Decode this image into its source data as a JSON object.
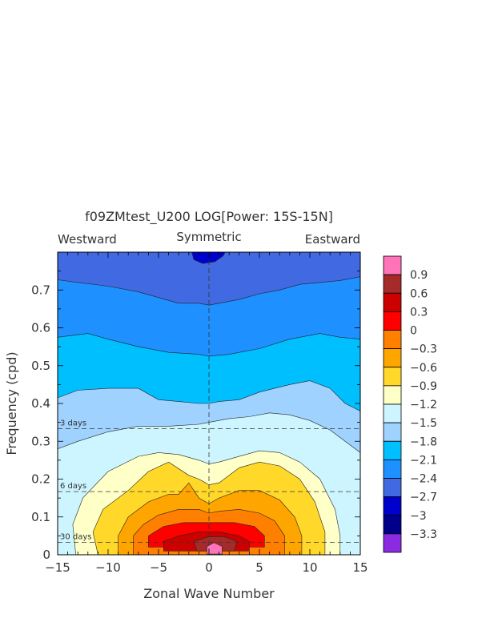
{
  "chart_data": {
    "type": "heatmap",
    "title": "f09ZMtest_U200 LOG[Power: 15S-15N]",
    "subtitle_center": "Symmetric",
    "subtitle_left": "Westward",
    "subtitle_right": "Eastward",
    "xlabel": "Zonal Wave Number",
    "ylabel": "Frequency (cpd)",
    "xlim": [
      -15,
      15
    ],
    "ylim": [
      0,
      0.8
    ],
    "xticks": [
      -15,
      -10,
      -5,
      0,
      5,
      10,
      15
    ],
    "yticks": [
      0,
      0.1,
      0.2,
      0.3,
      0.4,
      0.5,
      0.6,
      0.7
    ],
    "period_lines": [
      {
        "label": "3 days",
        "frequency": 0.333
      },
      {
        "label": "6 days",
        "frequency": 0.167
      },
      {
        "label": "30 days",
        "frequency": 0.033
      }
    ],
    "colorbar": {
      "levels": [
        "0.9",
        "0.6",
        "0.3",
        "0",
        "-0.3",
        "-0.6",
        "-0.9",
        "-1.2",
        "-1.5",
        "-1.8",
        "-2.1",
        "-2.4",
        "-2.7",
        "-3",
        "-3.3"
      ],
      "colors": [
        "#ff73b9",
        "#a52a2a",
        "#cd0000",
        "#ff0000",
        "#ff7f00",
        "#ffa500",
        "#ffd82a",
        "#ffffc8",
        "#cdf5ff",
        "#a0d2ff",
        "#00bfff",
        "#1e90ff",
        "#4169e1",
        "#0000cd",
        "#00008b",
        "#8a2be2"
      ]
    },
    "contour_fields": [
      {
        "level": -2.7,
        "color": "#4169e1",
        "shape": "band",
        "lower": [
          [
            -15,
            0.8
          ],
          [
            15,
            0.8
          ]
        ]
      },
      {
        "level": -2.4,
        "color": "#1e90ff",
        "shape": "band",
        "lower": [
          [
            -15,
            0.727
          ],
          [
            -13,
            0.72
          ],
          [
            -10,
            0.71
          ],
          [
            -7,
            0.695
          ],
          [
            -5,
            0.68
          ],
          [
            -3,
            0.665
          ],
          [
            -1,
            0.665
          ],
          [
            0,
            0.66
          ],
          [
            1,
            0.665
          ],
          [
            3,
            0.675
          ],
          [
            5,
            0.69
          ],
          [
            7,
            0.7
          ],
          [
            9,
            0.715
          ],
          [
            11,
            0.72
          ],
          [
            13,
            0.725
          ],
          [
            15,
            0.735
          ]
        ]
      },
      {
        "level": -2.1,
        "color": "#00bfff",
        "shape": "band",
        "lower": [
          [
            -15,
            0.575
          ],
          [
            -12,
            0.585
          ],
          [
            -10,
            0.57
          ],
          [
            -7,
            0.55
          ],
          [
            -4,
            0.535
          ],
          [
            -1,
            0.53
          ],
          [
            0,
            0.525
          ],
          [
            2,
            0.53
          ],
          [
            5,
            0.545
          ],
          [
            8,
            0.57
          ],
          [
            11,
            0.585
          ],
          [
            13,
            0.575
          ],
          [
            15,
            0.57
          ]
        ]
      },
      {
        "level": -1.8,
        "color": "#a0d2ff",
        "shape": "band",
        "lower": [
          [
            -15,
            0.415
          ],
          [
            -13,
            0.435
          ],
          [
            -10,
            0.44
          ],
          [
            -7,
            0.44
          ],
          [
            -5,
            0.41
          ],
          [
            -3,
            0.405
          ],
          [
            -1,
            0.4
          ],
          [
            0,
            0.4
          ],
          [
            1,
            0.405
          ],
          [
            3,
            0.41
          ],
          [
            5,
            0.43
          ],
          [
            8,
            0.45
          ],
          [
            10,
            0.46
          ],
          [
            12,
            0.44
          ],
          [
            13.5,
            0.4
          ],
          [
            15,
            0.38
          ]
        ]
      },
      {
        "level": -1.5,
        "color": "#cdf5ff",
        "shape": "band",
        "lower": [
          [
            -15,
            0.28
          ],
          [
            -13,
            0.3
          ],
          [
            -10,
            0.325
          ],
          [
            -7,
            0.34
          ],
          [
            -4,
            0.34
          ],
          [
            -1,
            0.345
          ],
          [
            0,
            0.35
          ],
          [
            2,
            0.36
          ],
          [
            4,
            0.365
          ],
          [
            6,
            0.375
          ],
          [
            8,
            0.37
          ],
          [
            10,
            0.355
          ],
          [
            12,
            0.33
          ],
          [
            14,
            0.29
          ],
          [
            15,
            0.27
          ]
        ]
      },
      {
        "level": -1.2,
        "color": "#ffffc8",
        "shape": "blob",
        "points": [
          [
            -13.2,
            0
          ],
          [
            -13.5,
            0.08
          ],
          [
            -12.5,
            0.15
          ],
          [
            -10,
            0.22
          ],
          [
            -7,
            0.26
          ],
          [
            -5,
            0.27
          ],
          [
            -3,
            0.265
          ],
          [
            -1,
            0.25
          ],
          [
            0,
            0.24
          ],
          [
            1,
            0.245
          ],
          [
            3,
            0.26
          ],
          [
            5,
            0.275
          ],
          [
            7,
            0.27
          ],
          [
            9,
            0.245
          ],
          [
            11,
            0.2
          ],
          [
            12.5,
            0.12
          ],
          [
            13,
            0.05
          ],
          [
            13,
            0
          ]
        ]
      },
      {
        "level": -0.9,
        "color": "#ffd82a",
        "shape": "blob",
        "points": [
          [
            -11,
            0
          ],
          [
            -11.5,
            0.06
          ],
          [
            -10.5,
            0.12
          ],
          [
            -8,
            0.17
          ],
          [
            -6,
            0.22
          ],
          [
            -4,
            0.245
          ],
          [
            -2,
            0.21
          ],
          [
            -1,
            0.2
          ],
          [
            0,
            0.185
          ],
          [
            1,
            0.19
          ],
          [
            3,
            0.23
          ],
          [
            5,
            0.245
          ],
          [
            7,
            0.235
          ],
          [
            9,
            0.2
          ],
          [
            10.5,
            0.14
          ],
          [
            11.5,
            0.06
          ],
          [
            11.5,
            0
          ]
        ]
      },
      {
        "level": -0.6,
        "color": "#ffa500",
        "shape": "blob",
        "points": [
          [
            -9,
            0
          ],
          [
            -9,
            0.05
          ],
          [
            -8,
            0.1
          ],
          [
            -6,
            0.14
          ],
          [
            -4,
            0.16
          ],
          [
            -3,
            0.16
          ],
          [
            -2,
            0.19
          ],
          [
            -1,
            0.15
          ],
          [
            0,
            0.135
          ],
          [
            1,
            0.15
          ],
          [
            3,
            0.17
          ],
          [
            5,
            0.17
          ],
          [
            7,
            0.145
          ],
          [
            8.5,
            0.1
          ],
          [
            9.2,
            0.05
          ],
          [
            9.2,
            0
          ]
        ]
      },
      {
        "level": -0.3,
        "color": "#ff7f00",
        "shape": "blob",
        "points": [
          [
            -7.5,
            0
          ],
          [
            -7.5,
            0.05
          ],
          [
            -6.5,
            0.08
          ],
          [
            -5,
            0.105
          ],
          [
            -3,
            0.12
          ],
          [
            -1,
            0.12
          ],
          [
            0,
            0.11
          ],
          [
            1,
            0.115
          ],
          [
            3,
            0.12
          ],
          [
            5,
            0.11
          ],
          [
            6.5,
            0.09
          ],
          [
            7.5,
            0.05
          ],
          [
            7.5,
            0
          ]
        ]
      },
      {
        "level": 0,
        "color": "#ff0000",
        "shape": "blob",
        "points": [
          [
            -6,
            0.02
          ],
          [
            -6,
            0.05
          ],
          [
            -4.5,
            0.075
          ],
          [
            -2.5,
            0.085
          ],
          [
            0,
            0.085
          ],
          [
            2.5,
            0.085
          ],
          [
            4.5,
            0.075
          ],
          [
            5.5,
            0.05
          ],
          [
            5.5,
            0.02
          ]
        ]
      },
      {
        "level": 0.3,
        "color": "#cd0000",
        "shape": "blob",
        "points": [
          [
            -4.5,
            0.01
          ],
          [
            -4.5,
            0.035
          ],
          [
            -3,
            0.05
          ],
          [
            -1,
            0.06
          ],
          [
            1,
            0.06
          ],
          [
            3,
            0.05
          ],
          [
            4,
            0.035
          ],
          [
            4,
            0.01
          ]
        ]
      },
      {
        "level": 0.6,
        "color": "#a52a2a",
        "shape": "blob",
        "points": [
          [
            -1.2,
            0.01
          ],
          [
            -1.5,
            0.035
          ],
          [
            0,
            0.048
          ],
          [
            1.5,
            0.048
          ],
          [
            2.8,
            0.035
          ],
          [
            2.5,
            0.01
          ]
        ]
      },
      {
        "level": 0.9,
        "color": "#ff73b9",
        "shape": "blob",
        "points": [
          [
            -0.2,
            0.002
          ],
          [
            -0.2,
            0.022
          ],
          [
            0.5,
            0.032
          ],
          [
            1.3,
            0.022
          ],
          [
            1.3,
            0.002
          ]
        ]
      },
      {
        "level": -3,
        "color": "#0000cd",
        "shape": "blob",
        "points": [
          [
            -1.7,
            0.8
          ],
          [
            -1.5,
            0.78
          ],
          [
            -0.6,
            0.77
          ],
          [
            0.6,
            0.775
          ],
          [
            1.4,
            0.79
          ],
          [
            1.6,
            0.8
          ]
        ]
      }
    ]
  }
}
